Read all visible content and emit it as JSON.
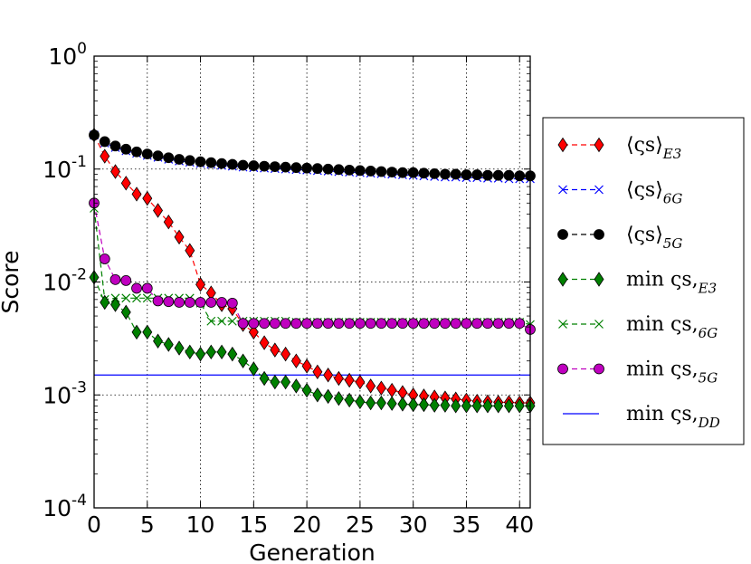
{
  "chart_data": {
    "type": "line",
    "xlabel": "Generation",
    "ylabel": "Score",
    "xlim": [
      0,
      41
    ],
    "ylim": [
      0.0001,
      1
    ],
    "yscale": "log",
    "grid": true,
    "x_ticks": [
      0,
      5,
      10,
      15,
      20,
      25,
      30,
      35,
      40
    ],
    "y_ticks": [
      {
        "value": 0.0001,
        "base": "10",
        "exp": "-4"
      },
      {
        "value": 0.001,
        "base": "10",
        "exp": "-3"
      },
      {
        "value": 0.01,
        "base": "10",
        "exp": "-2"
      },
      {
        "value": 0.1,
        "base": "10",
        "exp": "-1"
      },
      {
        "value": 1,
        "base": "10",
        "exp": "0"
      }
    ],
    "legend_position": "right-outside",
    "series": [
      {
        "name": "⟨ς_s⟩_E3",
        "label_main": "⟨ςs⟩",
        "label_sub": "E3",
        "color": "#ff0000",
        "marker": "diamond",
        "linestyle": "dashed",
        "x": [
          0,
          1,
          2,
          3,
          4,
          5,
          6,
          7,
          8,
          9,
          10,
          11,
          12,
          13,
          14,
          15,
          16,
          17,
          18,
          19,
          20,
          21,
          22,
          23,
          24,
          25,
          26,
          27,
          28,
          29,
          30,
          31,
          32,
          33,
          34,
          35,
          36,
          37,
          38,
          39,
          40,
          41
        ],
        "values": [
          0.2,
          0.13,
          0.095,
          0.075,
          0.06,
          0.055,
          0.043,
          0.034,
          0.025,
          0.019,
          0.0095,
          0.008,
          0.0063,
          0.0058,
          0.0042,
          0.0036,
          0.0029,
          0.0025,
          0.0023,
          0.002,
          0.0018,
          0.0016,
          0.0015,
          0.0014,
          0.00135,
          0.0013,
          0.0012,
          0.00115,
          0.0011,
          0.00105,
          0.001,
          0.00098,
          0.00096,
          0.00094,
          0.00092,
          0.0009,
          0.00088,
          0.00087,
          0.00086,
          0.00086,
          0.00085,
          0.00085
        ]
      },
      {
        "name": "⟨ς_s⟩_6G",
        "label_main": "⟨ςs⟩",
        "label_sub": "6G",
        "color": "#0000ff",
        "marker": "x",
        "linestyle": "dashed",
        "x": [
          0,
          1,
          2,
          3,
          4,
          5,
          6,
          7,
          8,
          9,
          10,
          11,
          12,
          13,
          14,
          15,
          16,
          17,
          18,
          19,
          20,
          21,
          22,
          23,
          24,
          25,
          26,
          27,
          28,
          29,
          30,
          31,
          32,
          33,
          34,
          35,
          36,
          37,
          38,
          39,
          40,
          41
        ],
        "values": [
          0.2,
          0.17,
          0.155,
          0.145,
          0.138,
          0.132,
          0.127,
          0.122,
          0.118,
          0.115,
          0.112,
          0.11,
          0.108,
          0.106,
          0.104,
          0.103,
          0.102,
          0.101,
          0.1,
          0.099,
          0.098,
          0.097,
          0.096,
          0.095,
          0.094,
          0.093,
          0.092,
          0.091,
          0.09,
          0.089,
          0.088,
          0.087,
          0.086,
          0.085,
          0.085,
          0.084,
          0.084,
          0.083,
          0.083,
          0.082,
          0.082,
          0.082
        ]
      },
      {
        "name": "⟨ς_s⟩_5G",
        "label_main": "⟨ςs⟩",
        "label_sub": "5G",
        "color": "#000000",
        "marker": "circle",
        "linestyle": "dashed",
        "x": [
          0,
          1,
          2,
          3,
          4,
          5,
          6,
          7,
          8,
          9,
          10,
          11,
          12,
          13,
          14,
          15,
          16,
          17,
          18,
          19,
          20,
          21,
          22,
          23,
          24,
          25,
          26,
          27,
          28,
          29,
          30,
          31,
          32,
          33,
          34,
          35,
          36,
          37,
          38,
          39,
          40,
          41
        ],
        "values": [
          0.2,
          0.175,
          0.16,
          0.15,
          0.142,
          0.136,
          0.131,
          0.126,
          0.122,
          0.119,
          0.116,
          0.114,
          0.112,
          0.11,
          0.108,
          0.107,
          0.106,
          0.105,
          0.104,
          0.103,
          0.102,
          0.101,
          0.1,
          0.099,
          0.098,
          0.097,
          0.096,
          0.095,
          0.094,
          0.093,
          0.093,
          0.092,
          0.091,
          0.09,
          0.09,
          0.089,
          0.089,
          0.088,
          0.088,
          0.088,
          0.087,
          0.087
        ]
      },
      {
        "name": "min ς_s,E3",
        "label_main": "min ςs,",
        "label_sub": "E3",
        "color": "#008000",
        "marker": "diamond",
        "linestyle": "dashed",
        "x": [
          0,
          1,
          2,
          3,
          4,
          5,
          6,
          7,
          8,
          9,
          10,
          11,
          12,
          13,
          14,
          15,
          16,
          17,
          18,
          19,
          20,
          21,
          22,
          23,
          24,
          25,
          26,
          27,
          28,
          29,
          30,
          31,
          32,
          33,
          34,
          35,
          36,
          37,
          38,
          39,
          40,
          41
        ],
        "values": [
          0.011,
          0.0066,
          0.0063,
          0.0054,
          0.0036,
          0.0036,
          0.003,
          0.0028,
          0.0026,
          0.0024,
          0.0023,
          0.0024,
          0.0024,
          0.0023,
          0.002,
          0.0017,
          0.0014,
          0.0013,
          0.0013,
          0.0012,
          0.0011,
          0.001,
          0.00097,
          0.00093,
          0.0009,
          0.00087,
          0.00085,
          0.00085,
          0.00084,
          0.00083,
          0.00082,
          0.00082,
          0.00081,
          0.00081,
          0.0008,
          0.0008,
          0.0008,
          0.0008,
          0.0008,
          0.0008,
          0.0008,
          0.0008
        ]
      },
      {
        "name": "min ς_s,6G",
        "label_main": "min ςs,",
        "label_sub": "6G",
        "color": "#008000",
        "marker": "x",
        "linestyle": "dashed",
        "x": [
          0,
          1,
          2,
          3,
          4,
          5,
          6,
          7,
          8,
          9,
          10,
          11,
          12,
          13,
          14,
          15,
          16,
          17,
          18,
          19,
          20,
          21,
          22,
          23,
          24,
          25,
          26,
          27,
          28,
          29,
          30,
          31,
          32,
          33,
          34,
          35,
          36,
          37,
          38,
          39,
          40,
          41
        ],
        "values": [
          0.045,
          0.007,
          0.0072,
          0.0072,
          0.0072,
          0.0072,
          0.0072,
          0.0072,
          0.0072,
          0.0072,
          0.0065,
          0.0045,
          0.0045,
          0.0045,
          0.0045,
          0.0045,
          0.0045,
          0.0045,
          0.0045,
          0.0044,
          0.0044,
          0.0044,
          0.0044,
          0.0044,
          0.0044,
          0.0044,
          0.0044,
          0.0044,
          0.0044,
          0.0044,
          0.0044,
          0.0044,
          0.0044,
          0.0044,
          0.0044,
          0.0044,
          0.0044,
          0.0044,
          0.0044,
          0.0044,
          0.0044,
          0.0042
        ]
      },
      {
        "name": "min ς_s,5G",
        "label_main": "min ςs,",
        "label_sub": "5G",
        "color": "#bf00bf",
        "marker": "circle",
        "linestyle": "dashed",
        "x": [
          0,
          1,
          2,
          3,
          4,
          5,
          6,
          7,
          8,
          9,
          10,
          11,
          12,
          13,
          14,
          15,
          16,
          17,
          18,
          19,
          20,
          21,
          22,
          23,
          24,
          25,
          26,
          27,
          28,
          29,
          30,
          31,
          32,
          33,
          34,
          35,
          36,
          37,
          38,
          39,
          40,
          41
        ],
        "values": [
          0.05,
          0.016,
          0.0105,
          0.0103,
          0.0088,
          0.0088,
          0.0068,
          0.0067,
          0.0066,
          0.0066,
          0.0066,
          0.0066,
          0.0066,
          0.0065,
          0.0043,
          0.0043,
          0.0043,
          0.0043,
          0.0043,
          0.0043,
          0.0043,
          0.0043,
          0.0043,
          0.0043,
          0.0043,
          0.0043,
          0.0043,
          0.0043,
          0.0043,
          0.0043,
          0.0043,
          0.0043,
          0.0043,
          0.0043,
          0.0043,
          0.0043,
          0.0043,
          0.0043,
          0.0043,
          0.0043,
          0.0043,
          0.0038
        ]
      },
      {
        "name": "min ς_s,DD",
        "label_main": "min ςs,",
        "label_sub": "DD",
        "color": "#0000ff",
        "marker": "none",
        "linestyle": "solid",
        "x": [
          0,
          41
        ],
        "values": [
          0.0015,
          0.0015
        ]
      }
    ]
  }
}
